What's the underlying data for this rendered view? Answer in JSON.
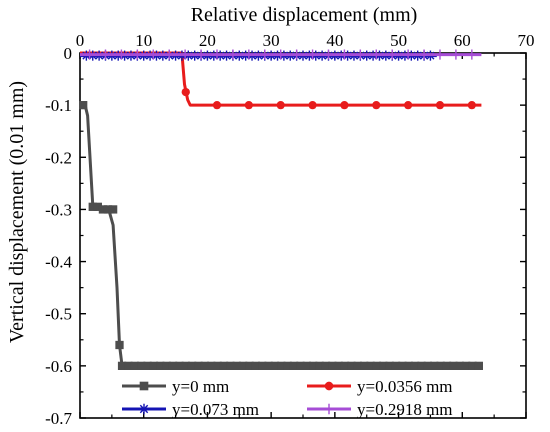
{
  "chart_data": {
    "type": "line",
    "title": "",
    "xlabel": "Relative displacement (mm)",
    "ylabel": "Vertical displacement (0.01 mm)",
    "xlim": [
      0,
      70
    ],
    "ylim": [
      -0.7,
      0
    ],
    "x_ticks": [
      "0",
      "10",
      "20",
      "30",
      "40",
      "50",
      "60",
      "70"
    ],
    "y_ticks": [
      "0",
      "-0.1",
      "-0.2",
      "-0.3",
      "-0.4",
      "-0.5",
      "-0.6",
      "-0.7"
    ],
    "x_axis_position": "top",
    "grid": false,
    "legend_position": "bottom",
    "series": [
      {
        "name": "y=0 mm",
        "color": "#4d4d4d",
        "marker": "square",
        "line": [
          [
            0,
            -0.1
          ],
          [
            0.8,
            -0.1
          ],
          [
            1.2,
            -0.12
          ],
          [
            2,
            -0.29
          ],
          [
            2.3,
            -0.295
          ],
          [
            4.5,
            -0.3
          ],
          [
            5.2,
            -0.33
          ],
          [
            5.8,
            -0.45
          ],
          [
            6.2,
            -0.56
          ],
          [
            6.6,
            -0.6
          ],
          [
            63,
            -0.6
          ]
        ],
        "markers": [
          [
            0.5,
            -0.1
          ],
          [
            2.0,
            -0.295
          ],
          [
            2.8,
            -0.295
          ],
          [
            3.6,
            -0.3
          ],
          [
            4.4,
            -0.3
          ],
          [
            5.2,
            -0.3
          ],
          [
            6.2,
            -0.56
          ],
          [
            6.6,
            -0.6
          ],
          [
            7.6,
            -0.6
          ],
          [
            8.6,
            -0.6
          ],
          [
            9.6,
            -0.6
          ],
          [
            10.6,
            -0.6
          ],
          [
            11.6,
            -0.6
          ],
          [
            12.6,
            -0.6
          ],
          [
            13.6,
            -0.6
          ],
          [
            14.6,
            -0.6
          ],
          [
            15.6,
            -0.6
          ],
          [
            16.6,
            -0.6
          ],
          [
            17.6,
            -0.6
          ],
          [
            18.6,
            -0.6
          ],
          [
            19.6,
            -0.6
          ],
          [
            20.6,
            -0.6
          ],
          [
            21.6,
            -0.6
          ],
          [
            22.6,
            -0.6
          ],
          [
            23.6,
            -0.6
          ],
          [
            24.6,
            -0.6
          ],
          [
            25.6,
            -0.6
          ],
          [
            26.6,
            -0.6
          ],
          [
            27.6,
            -0.6
          ],
          [
            28.6,
            -0.6
          ],
          [
            29.6,
            -0.6
          ],
          [
            30.6,
            -0.6
          ],
          [
            31.6,
            -0.6
          ],
          [
            32.6,
            -0.6
          ],
          [
            33.6,
            -0.6
          ],
          [
            34.6,
            -0.6
          ],
          [
            35.6,
            -0.6
          ],
          [
            36.6,
            -0.6
          ],
          [
            37.6,
            -0.6
          ],
          [
            38.6,
            -0.6
          ],
          [
            39.6,
            -0.6
          ],
          [
            40.6,
            -0.6
          ],
          [
            41.6,
            -0.6
          ],
          [
            42.6,
            -0.6
          ],
          [
            43.6,
            -0.6
          ],
          [
            44.6,
            -0.6
          ],
          [
            45.6,
            -0.6
          ],
          [
            46.6,
            -0.6
          ],
          [
            47.6,
            -0.6
          ],
          [
            48.6,
            -0.6
          ],
          [
            49.6,
            -0.6
          ],
          [
            50.6,
            -0.6
          ],
          [
            51.6,
            -0.6
          ],
          [
            52.6,
            -0.6
          ],
          [
            53.6,
            -0.6
          ],
          [
            54.6,
            -0.6
          ],
          [
            55.6,
            -0.6
          ],
          [
            56.6,
            -0.6
          ],
          [
            57.6,
            -0.6
          ],
          [
            58.6,
            -0.6
          ],
          [
            59.6,
            -0.6
          ],
          [
            60.6,
            -0.6
          ],
          [
            61.6,
            -0.6
          ],
          [
            62.6,
            -0.6
          ]
        ]
      },
      {
        "name": "y=0.0356 mm",
        "color": "#e81c1c",
        "marker": "circle",
        "line": [
          [
            0,
            0
          ],
          [
            16.0,
            0
          ],
          [
            16.4,
            -0.06
          ],
          [
            16.9,
            -0.09
          ],
          [
            17.3,
            -0.1
          ],
          [
            63,
            -0.1
          ]
        ],
        "markers": [
          [
            16.6,
            -0.075
          ],
          [
            21.5,
            -0.1
          ],
          [
            26.5,
            -0.1
          ],
          [
            31.5,
            -0.1
          ],
          [
            36.5,
            -0.1
          ],
          [
            41.5,
            -0.1
          ],
          [
            46.5,
            -0.1
          ],
          [
            51.5,
            -0.1
          ],
          [
            56.5,
            -0.1
          ],
          [
            61.5,
            -0.1
          ]
        ]
      },
      {
        "name": "y=0.073 mm",
        "color": "#1414b4",
        "marker": "asterisk",
        "line": [
          [
            0,
            -0.005
          ],
          [
            56,
            -0.005
          ]
        ],
        "markers": [
          [
            1,
            -0.005
          ],
          [
            2,
            -0.005
          ],
          [
            3,
            -0.005
          ],
          [
            4,
            -0.005
          ],
          [
            5,
            -0.005
          ],
          [
            6,
            -0.005
          ],
          [
            7,
            -0.005
          ],
          [
            8,
            -0.005
          ],
          [
            9,
            -0.005
          ],
          [
            10,
            -0.005
          ],
          [
            11,
            -0.005
          ],
          [
            12,
            -0.005
          ],
          [
            13,
            -0.005
          ],
          [
            14,
            -0.005
          ],
          [
            15,
            -0.005
          ],
          [
            16,
            -0.005
          ],
          [
            17,
            -0.005
          ],
          [
            18,
            -0.005
          ],
          [
            19,
            -0.005
          ],
          [
            20,
            -0.005
          ],
          [
            21,
            -0.005
          ],
          [
            22,
            -0.005
          ],
          [
            23,
            -0.005
          ],
          [
            24,
            -0.005
          ],
          [
            25,
            -0.005
          ],
          [
            26,
            -0.005
          ],
          [
            27,
            -0.005
          ],
          [
            28,
            -0.005
          ],
          [
            29,
            -0.005
          ],
          [
            30,
            -0.005
          ],
          [
            31,
            -0.005
          ],
          [
            32,
            -0.005
          ],
          [
            33,
            -0.005
          ],
          [
            34,
            -0.005
          ],
          [
            35,
            -0.005
          ],
          [
            36,
            -0.005
          ],
          [
            37,
            -0.005
          ],
          [
            38,
            -0.005
          ],
          [
            39,
            -0.005
          ],
          [
            40,
            -0.005
          ],
          [
            41,
            -0.005
          ],
          [
            42,
            -0.005
          ],
          [
            43,
            -0.005
          ],
          [
            44,
            -0.005
          ],
          [
            45,
            -0.005
          ],
          [
            46,
            -0.005
          ],
          [
            47,
            -0.005
          ],
          [
            48,
            -0.005
          ],
          [
            49,
            -0.005
          ],
          [
            50,
            -0.005
          ],
          [
            51,
            -0.005
          ],
          [
            52,
            -0.005
          ],
          [
            53,
            -0.005
          ],
          [
            54,
            -0.005
          ],
          [
            55,
            -0.005
          ]
        ]
      },
      {
        "name": "y=0.2918 mm",
        "color": "#a64dd6",
        "marker": "plus",
        "line": [
          [
            0,
            -0.003
          ],
          [
            63,
            -0.003
          ]
        ],
        "markers": [
          [
            1.5,
            -0.003
          ],
          [
            4,
            -0.003
          ],
          [
            6.5,
            -0.003
          ],
          [
            9,
            -0.003
          ],
          [
            11.5,
            -0.003
          ],
          [
            14,
            -0.003
          ],
          [
            16.5,
            -0.003
          ],
          [
            19,
            -0.003
          ],
          [
            21.5,
            -0.003
          ],
          [
            24,
            -0.003
          ],
          [
            26.5,
            -0.003
          ],
          [
            29,
            -0.003
          ],
          [
            31.5,
            -0.003
          ],
          [
            34,
            -0.003
          ],
          [
            36.5,
            -0.003
          ],
          [
            39,
            -0.003
          ],
          [
            41.5,
            -0.003
          ],
          [
            44,
            -0.003
          ],
          [
            46.5,
            -0.003
          ],
          [
            49,
            -0.003
          ],
          [
            51.5,
            -0.003
          ],
          [
            54,
            -0.003
          ],
          [
            56.5,
            -0.003
          ],
          [
            59,
            -0.003
          ],
          [
            61.5,
            -0.003
          ]
        ]
      }
    ]
  }
}
